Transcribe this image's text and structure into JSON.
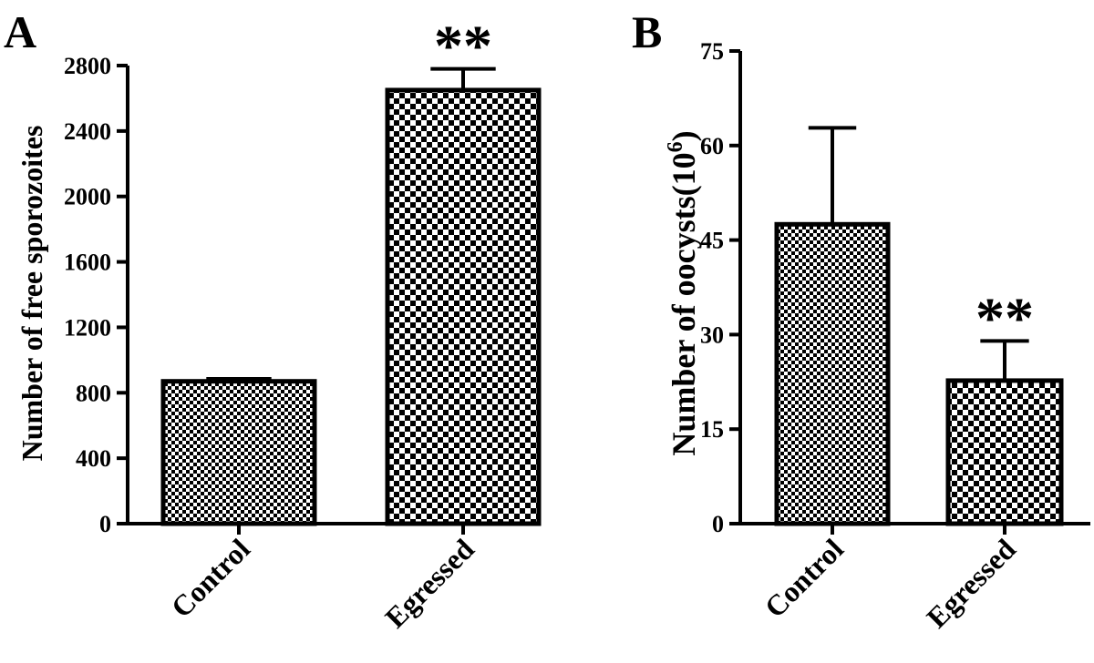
{
  "chart_data": [
    {
      "panel_label": "A",
      "type": "bar",
      "categories": [
        "Control",
        "Egressed"
      ],
      "values": [
        870,
        2650
      ],
      "error_upper": [
        885,
        2780
      ],
      "significance": [
        "",
        "**"
      ],
      "ylabel": "Number of free sporozoites",
      "ylim": [
        0,
        2800
      ],
      "yticks": [
        0,
        400,
        800,
        1200,
        1600,
        2000,
        2400,
        2800
      ],
      "patterns": [
        "fine-checker",
        "coarse-checker"
      ],
      "grid": false,
      "legend": "none"
    },
    {
      "panel_label": "B",
      "type": "bar",
      "categories": [
        "Control",
        "Egressed"
      ],
      "values": [
        47.5,
        22.7
      ],
      "error_upper": [
        62.8,
        29.0
      ],
      "significance": [
        "",
        "**"
      ],
      "ylabel_main": "Number of oocysts(10",
      "ylabel_sup": "6",
      "ylabel_close": ")",
      "ylim": [
        0,
        75
      ],
      "yticks": [
        0,
        15,
        30,
        45,
        60,
        75
      ],
      "patterns": [
        "fine-checker",
        "coarse-checker"
      ],
      "grid": false,
      "legend": "none"
    }
  ]
}
